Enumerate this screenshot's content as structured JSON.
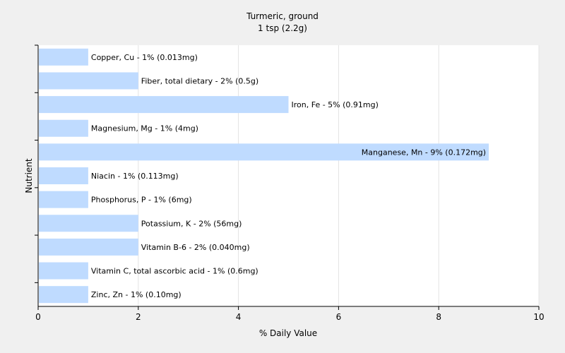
{
  "chart_data": {
    "type": "bar",
    "orientation": "horizontal",
    "title": "Turmeric, ground",
    "subtitle": "1 tsp (2.2g)",
    "xlabel": "% Daily Value",
    "ylabel": "Nutrient",
    "xlim": [
      0,
      10
    ],
    "xticks": [
      0,
      2,
      4,
      6,
      8,
      10
    ],
    "grid": "vertical",
    "bar_color": "#bfdbff",
    "categories": [
      "Copper, Cu",
      "Fiber, total dietary",
      "Iron, Fe",
      "Magnesium, Mg",
      "Manganese, Mn",
      "Niacin",
      "Phosphorus, P",
      "Potassium, K",
      "Vitamin B-6",
      "Vitamin C, total ascorbic acid",
      "Zinc, Zn"
    ],
    "values": [
      1,
      2,
      5,
      1,
      9,
      1,
      1,
      2,
      2,
      1,
      1
    ],
    "labels": [
      "Copper, Cu - 1% (0.013mg)",
      "Fiber, total dietary - 2% (0.5g)",
      "Iron, Fe - 5% (0.91mg)",
      "Magnesium, Mg - 1% (4mg)",
      "Manganese, Mn - 9% (0.172mg)",
      "Niacin - 1% (0.113mg)",
      "Phosphorus, P - 1% (6mg)",
      "Potassium, K - 2% (56mg)",
      "Vitamin B-6 - 2% (0.040mg)",
      "Vitamin C, total ascorbic acid - 1% (0.6mg)",
      "Zinc, Zn - 1% (0.10mg)"
    ]
  }
}
